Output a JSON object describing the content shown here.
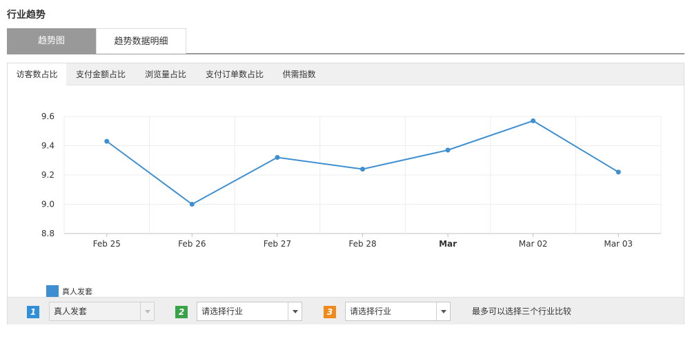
{
  "section_title": "行业趋势",
  "main_tabs": [
    {
      "label": "趋势图",
      "active": true
    },
    {
      "label": "趋势数据明细",
      "active": false
    }
  ],
  "sub_tabs": [
    {
      "label": "访客数占比",
      "active": true
    },
    {
      "label": "支付金额占比",
      "active": false
    },
    {
      "label": "浏览量占比",
      "active": false
    },
    {
      "label": "支付订单数占比",
      "active": false
    },
    {
      "label": "供需指数",
      "active": false
    }
  ],
  "chart_data": {
    "type": "line",
    "categories": [
      "Feb 25",
      "Feb 26",
      "Feb 27",
      "Feb 28",
      "Mar",
      "Mar 02",
      "Mar 03"
    ],
    "series": [
      {
        "name": "真人发套",
        "values": [
          9.43,
          9.0,
          9.32,
          9.24,
          9.37,
          9.57,
          9.22
        ],
        "color": "#3d8fd1"
      }
    ],
    "y_ticks": [
      "8.8",
      "9.0",
      "9.2",
      "9.4",
      "9.6"
    ],
    "ylim": [
      8.8,
      9.6
    ],
    "grid": true,
    "bold_x_label": "Mar",
    "legend_position": "bottom-left"
  },
  "filters": {
    "items": [
      {
        "number": "1",
        "badge_color": "#2f8fd8",
        "value": "真人发套",
        "disabled": true
      },
      {
        "number": "2",
        "badge_color": "#3aa34a",
        "value": "请选择行业",
        "disabled": false
      },
      {
        "number": "3",
        "badge_color": "#f08a1c",
        "value": "请选择行业",
        "disabled": false
      }
    ],
    "hint": "最多可以选择三个行业比较"
  }
}
